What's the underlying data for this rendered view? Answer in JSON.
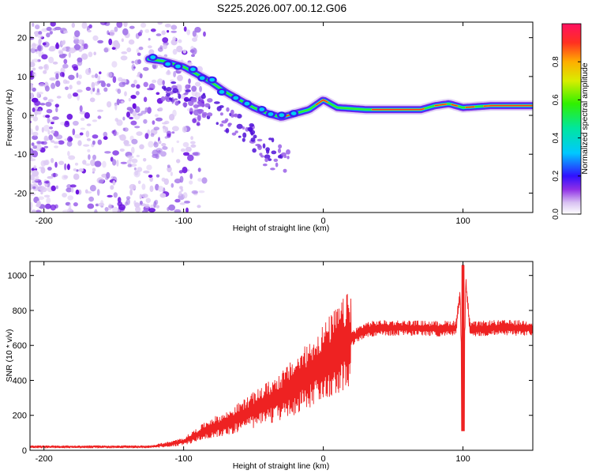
{
  "title": "S225.2026.007.00.12.G06",
  "chart_data": [
    {
      "type": "heatmap",
      "xlabel": "Height of straight line (km)",
      "ylabel": "Frequency (Hz)",
      "xlim": [
        -210,
        150
      ],
      "ylim": [
        -25,
        24
      ],
      "xticks": [
        -200,
        -100,
        0,
        100
      ],
      "yticks": [
        20,
        10,
        0,
        -10,
        -20
      ],
      "colorbar": {
        "label": "Normalized spectral amplitude",
        "range": [
          0,
          1
        ],
        "ticks": [
          0.0,
          0.2,
          0.4,
          0.6,
          0.8
        ]
      },
      "ridge": [
        {
          "x": -125,
          "y": 14.5
        },
        {
          "x": -115,
          "y": 14
        },
        {
          "x": -100,
          "y": 12.5
        },
        {
          "x": -90,
          "y": 10.5
        },
        {
          "x": -80,
          "y": 8.5
        },
        {
          "x": -70,
          "y": 6
        },
        {
          "x": -60,
          "y": 4
        },
        {
          "x": -50,
          "y": 2
        },
        {
          "x": -40,
          "y": 0.5
        },
        {
          "x": -30,
          "y": -0.5
        },
        {
          "x": -20,
          "y": 0.5
        },
        {
          "x": -10,
          "y": 1.5
        },
        {
          "x": 0,
          "y": 4
        },
        {
          "x": 10,
          "y": 2
        },
        {
          "x": 30,
          "y": 1.5
        },
        {
          "x": 70,
          "y": 1.5
        },
        {
          "x": 80,
          "y": 2.5
        },
        {
          "x": 90,
          "y": 3
        },
        {
          "x": 100,
          "y": 2
        },
        {
          "x": 120,
          "y": 2.5
        },
        {
          "x": 150,
          "y": 2.5
        }
      ]
    },
    {
      "type": "line",
      "xlabel": "Height of straight line (km)",
      "ylabel": "SNR (10 * v/v)",
      "xlim": [
        -210,
        150
      ],
      "ylim": [
        0,
        1080
      ],
      "xticks": [
        -200,
        -100,
        0,
        100
      ],
      "yticks": [
        0,
        200,
        400,
        600,
        800,
        1000
      ],
      "series": [
        {
          "name": "SNR",
          "color": "#ee2222",
          "x": [
            -210,
            -180,
            -150,
            -125,
            -110,
            -100,
            -90,
            -80,
            -70,
            -60,
            -50,
            -40,
            -30,
            -20,
            -10,
            0,
            10,
            20,
            30,
            40,
            60,
            80,
            95,
            98,
            100,
            102,
            105,
            120,
            150
          ],
          "y": [
            20,
            20,
            20,
            20,
            35,
            50,
            90,
            130,
            150,
            190,
            230,
            270,
            310,
            370,
            430,
            500,
            570,
            640,
            690,
            700,
            700,
            695,
            700,
            900,
            110,
            960,
            690,
            700,
            700
          ]
        }
      ]
    }
  ]
}
